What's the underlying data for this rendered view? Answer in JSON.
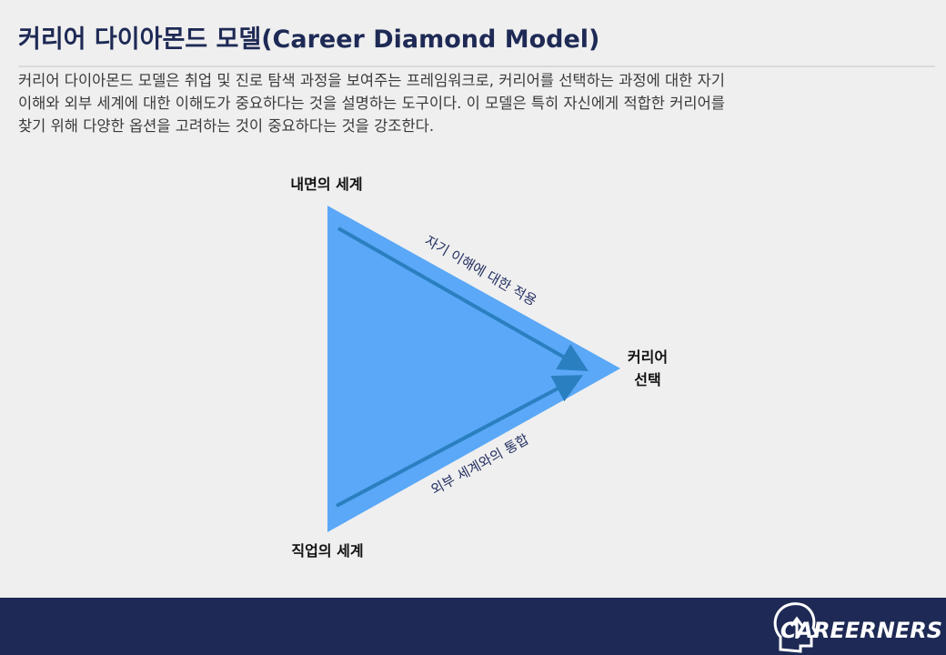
{
  "header": {
    "title": "커리어 다이아몬드 모델(Career Diamond Model)"
  },
  "description": {
    "lines": [
      "커리어 다이아몬드 모델은 취업 및 진로 탐색 과정을 보여주는 프레임워크로, 커리어를 선택하는 과정에 대한 자기",
      "이해와 외부 세계에 대한 이해도가 중요하다는 것을 설명하는 도구이다. 이 모델은 특히 자신에게 적합한 커리어를",
      "찾기 위해 다양한 옵션을 고려하는 것이 중요하다는 것을 강조한다."
    ]
  },
  "diagram": {
    "nodes": [
      {
        "label": [
          "내면의 세계"
        ]
      },
      {
        "label": [
          "커리어",
          "선택"
        ]
      },
      {
        "label": [
          "직업의 세계"
        ]
      }
    ],
    "edges": [
      {
        "label": "자기 이해에 대한 적용"
      },
      {
        "label": "외부 세계와의 통합"
      }
    ]
  },
  "footer": {
    "logo": "CAREERNERS"
  }
}
